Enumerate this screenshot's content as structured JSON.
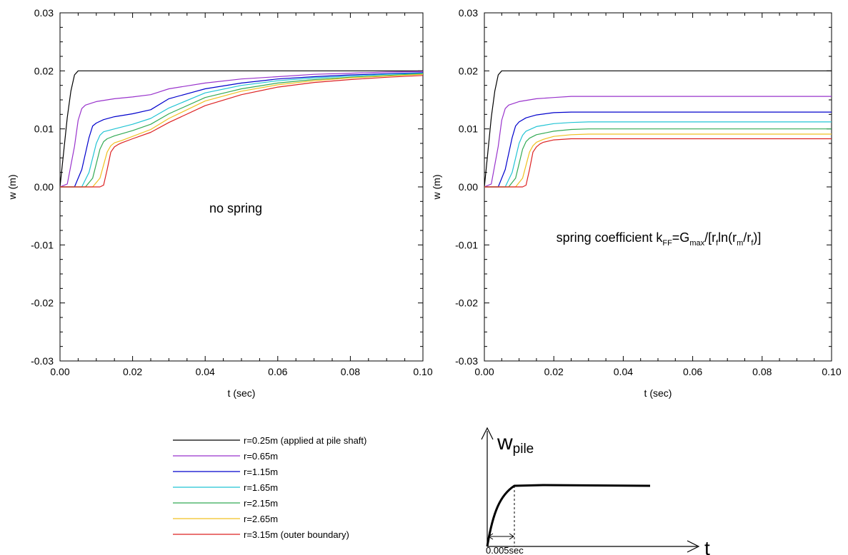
{
  "chart_data": [
    {
      "type": "line",
      "annotation": "no spring",
      "xlabel": "t (sec)",
      "ylabel": "w (m)",
      "xlim": [
        0,
        0.1
      ],
      "ylim": [
        -0.03,
        0.03
      ],
      "xticks": [
        "0.00",
        "0.02",
        "0.04",
        "0.06",
        "0.08",
        "0.10"
      ],
      "yticks": [
        "0.03",
        "0.02",
        "0.01",
        "0.00",
        "-0.01",
        "-0.02",
        "-0.03"
      ],
      "series": [
        {
          "name": "r=0.25m  (applied at pile shaft)",
          "color": "#000000",
          "x": [
            0,
            0.001,
            0.002,
            0.003,
            0.004,
            0.005,
            0.01,
            0.05,
            0.1
          ],
          "y": [
            0,
            0.006,
            0.012,
            0.0165,
            0.0193,
            0.02,
            0.02,
            0.02,
            0.02
          ]
        },
        {
          "name": "r=0.65m",
          "color": "#9933cc",
          "x": [
            0,
            0.002,
            0.004,
            0.005,
            0.006,
            0.007,
            0.01,
            0.015,
            0.02,
            0.025,
            0.027,
            0.03,
            0.04,
            0.05,
            0.06,
            0.07,
            0.08,
            0.09,
            0.1
          ],
          "y": [
            0,
            0.0005,
            0.007,
            0.0115,
            0.0135,
            0.0141,
            0.0147,
            0.0152,
            0.0155,
            0.0159,
            0.0163,
            0.0169,
            0.0179,
            0.0186,
            0.019,
            0.0194,
            0.0196,
            0.0198,
            0.0199
          ]
        },
        {
          "name": "r=1.15m",
          "color": "#0000cc",
          "x": [
            0,
            0.004,
            0.006,
            0.008,
            0.009,
            0.01,
            0.012,
            0.015,
            0.02,
            0.025,
            0.03,
            0.04,
            0.05,
            0.06,
            0.07,
            0.08,
            0.09,
            0.1
          ],
          "y": [
            0,
            0,
            0.003,
            0.0085,
            0.0105,
            0.011,
            0.0116,
            0.0121,
            0.0126,
            0.0133,
            0.0152,
            0.0169,
            0.0179,
            0.0186,
            0.019,
            0.0193,
            0.0195,
            0.0197
          ]
        },
        {
          "name": "r=1.65m",
          "color": "#22c4d4",
          "x": [
            0,
            0.006,
            0.008,
            0.01,
            0.011,
            0.012,
            0.015,
            0.02,
            0.025,
            0.03,
            0.04,
            0.05,
            0.06,
            0.07,
            0.08,
            0.09,
            0.1
          ],
          "y": [
            0,
            0,
            0.0025,
            0.0075,
            0.0089,
            0.0095,
            0.01,
            0.0108,
            0.0118,
            0.0136,
            0.0162,
            0.0175,
            0.0183,
            0.0188,
            0.0191,
            0.0194,
            0.0196
          ]
        },
        {
          "name": "r=2.15m",
          "color": "#33aa55",
          "x": [
            0,
            0.007,
            0.009,
            0.011,
            0.012,
            0.013,
            0.015,
            0.02,
            0.025,
            0.03,
            0.04,
            0.05,
            0.06,
            0.07,
            0.08,
            0.09,
            0.1
          ],
          "y": [
            0,
            0,
            0.0015,
            0.0065,
            0.0078,
            0.0083,
            0.0088,
            0.0097,
            0.0108,
            0.0126,
            0.0154,
            0.0169,
            0.0179,
            0.0185,
            0.0189,
            0.0192,
            0.0195
          ]
        },
        {
          "name": "r=2.65m",
          "color": "#f0c020",
          "x": [
            0,
            0.009,
            0.011,
            0.013,
            0.014,
            0.015,
            0.017,
            0.02,
            0.025,
            0.03,
            0.04,
            0.05,
            0.06,
            0.07,
            0.08,
            0.09,
            0.1
          ],
          "y": [
            0,
            0,
            0.0015,
            0.006,
            0.0071,
            0.0076,
            0.008,
            0.0087,
            0.0099,
            0.0118,
            0.0148,
            0.0165,
            0.0176,
            0.0183,
            0.0188,
            0.0191,
            0.0194
          ]
        },
        {
          "name": "r=3.15m (outer boundary)",
          "color": "#dd2222",
          "x": [
            0,
            0.011,
            0.012,
            0.013,
            0.014,
            0.015,
            0.016,
            0.017,
            0.02,
            0.025,
            0.03,
            0.04,
            0.05,
            0.06,
            0.07,
            0.08,
            0.09,
            0.1
          ],
          "y": [
            0,
            0,
            0.0003,
            0.003,
            0.006,
            0.0069,
            0.0073,
            0.0076,
            0.0083,
            0.0094,
            0.0111,
            0.014,
            0.0159,
            0.0172,
            0.018,
            0.0185,
            0.0189,
            0.0192
          ]
        }
      ]
    },
    {
      "type": "line",
      "annotation": {
        "prefix": "spring coefficient k",
        "sub1": "FF",
        "eq": "=G",
        "sub2": "max",
        "mid": "/[r",
        "sub3": "f",
        "mid2": "ln(r",
        "sub4": "m",
        "mid3": "/r",
        "sub5": "f",
        "suffix": ")]"
      },
      "xlabel": "t (sec)",
      "ylabel": "w (m)",
      "xlim": [
        0,
        0.1
      ],
      "ylim": [
        -0.03,
        0.03
      ],
      "xticks": [
        "0.00",
        "0.02",
        "0.04",
        "0.06",
        "0.08",
        "0.10"
      ],
      "yticks": [
        "0.03",
        "0.02",
        "0.01",
        "0.00",
        "-0.01",
        "-0.02",
        "-0.03"
      ],
      "series": [
        {
          "name": "r=0.25m  (applied at pile shaft)",
          "color": "#000000",
          "x": [
            0,
            0.001,
            0.002,
            0.003,
            0.004,
            0.005,
            0.01,
            0.05,
            0.1
          ],
          "y": [
            0,
            0.006,
            0.012,
            0.0165,
            0.0193,
            0.02,
            0.02,
            0.02,
            0.02
          ]
        },
        {
          "name": "r=0.65m",
          "color": "#9933cc",
          "x": [
            0,
            0.002,
            0.004,
            0.005,
            0.006,
            0.007,
            0.01,
            0.015,
            0.02,
            0.025,
            0.03,
            0.06,
            0.1
          ],
          "y": [
            0,
            0.0005,
            0.007,
            0.0115,
            0.0135,
            0.0141,
            0.0147,
            0.0152,
            0.0154,
            0.0156,
            0.0156,
            0.0156,
            0.0156
          ]
        },
        {
          "name": "r=1.15m",
          "color": "#0000cc",
          "x": [
            0,
            0.004,
            0.006,
            0.008,
            0.009,
            0.01,
            0.012,
            0.015,
            0.02,
            0.025,
            0.03,
            0.06,
            0.1
          ],
          "y": [
            0,
            0,
            0.003,
            0.0085,
            0.0105,
            0.0112,
            0.0119,
            0.0124,
            0.0128,
            0.0129,
            0.0129,
            0.0129,
            0.0129
          ]
        },
        {
          "name": "r=1.65m",
          "color": "#22c4d4",
          "x": [
            0,
            0.006,
            0.008,
            0.01,
            0.011,
            0.012,
            0.015,
            0.02,
            0.025,
            0.03,
            0.06,
            0.1
          ],
          "y": [
            0,
            0,
            0.0025,
            0.0075,
            0.0089,
            0.0096,
            0.0104,
            0.0109,
            0.0111,
            0.0112,
            0.0112,
            0.0112
          ]
        },
        {
          "name": "r=2.15m",
          "color": "#33aa55",
          "x": [
            0,
            0.007,
            0.009,
            0.011,
            0.012,
            0.013,
            0.015,
            0.02,
            0.025,
            0.03,
            0.06,
            0.1
          ],
          "y": [
            0,
            0,
            0.0015,
            0.0065,
            0.0078,
            0.0084,
            0.009,
            0.0096,
            0.0099,
            0.01,
            0.01,
            0.01
          ]
        },
        {
          "name": "r=2.65m",
          "color": "#f0c020",
          "x": [
            0,
            0.009,
            0.011,
            0.013,
            0.014,
            0.015,
            0.017,
            0.02,
            0.025,
            0.03,
            0.06,
            0.1
          ],
          "y": [
            0,
            0,
            0.0015,
            0.006,
            0.0071,
            0.0077,
            0.0082,
            0.0087,
            0.009,
            0.0091,
            0.0091,
            0.0091
          ]
        },
        {
          "name": "r=3.15m (outer boundary)",
          "color": "#dd2222",
          "x": [
            0,
            0.011,
            0.012,
            0.013,
            0.014,
            0.015,
            0.016,
            0.017,
            0.02,
            0.025,
            0.03,
            0.06,
            0.1
          ],
          "y": [
            0,
            0,
            0.0003,
            0.003,
            0.006,
            0.0069,
            0.0074,
            0.0077,
            0.0081,
            0.0083,
            0.0083,
            0.0083,
            0.0083
          ]
        }
      ]
    }
  ],
  "legend": {
    "entries": [
      {
        "label": "r=0.25m  (applied at pile shaft)",
        "color": "#000000"
      },
      {
        "label": "r=0.65m",
        "color": "#9933cc"
      },
      {
        "label": "r=1.15m",
        "color": "#0000cc"
      },
      {
        "label": "r=1.65m",
        "color": "#22c4d4"
      },
      {
        "label": "r=2.15m",
        "color": "#33aa55"
      },
      {
        "label": "r=2.65m",
        "color": "#f0c020"
      },
      {
        "label": "r=3.15m (outer boundary)",
        "color": "#dd2222"
      }
    ]
  },
  "inset": {
    "ylabel_main": "w",
    "ylabel_sub": "pile",
    "xlabel": "t",
    "interval_label": "0.005sec"
  }
}
